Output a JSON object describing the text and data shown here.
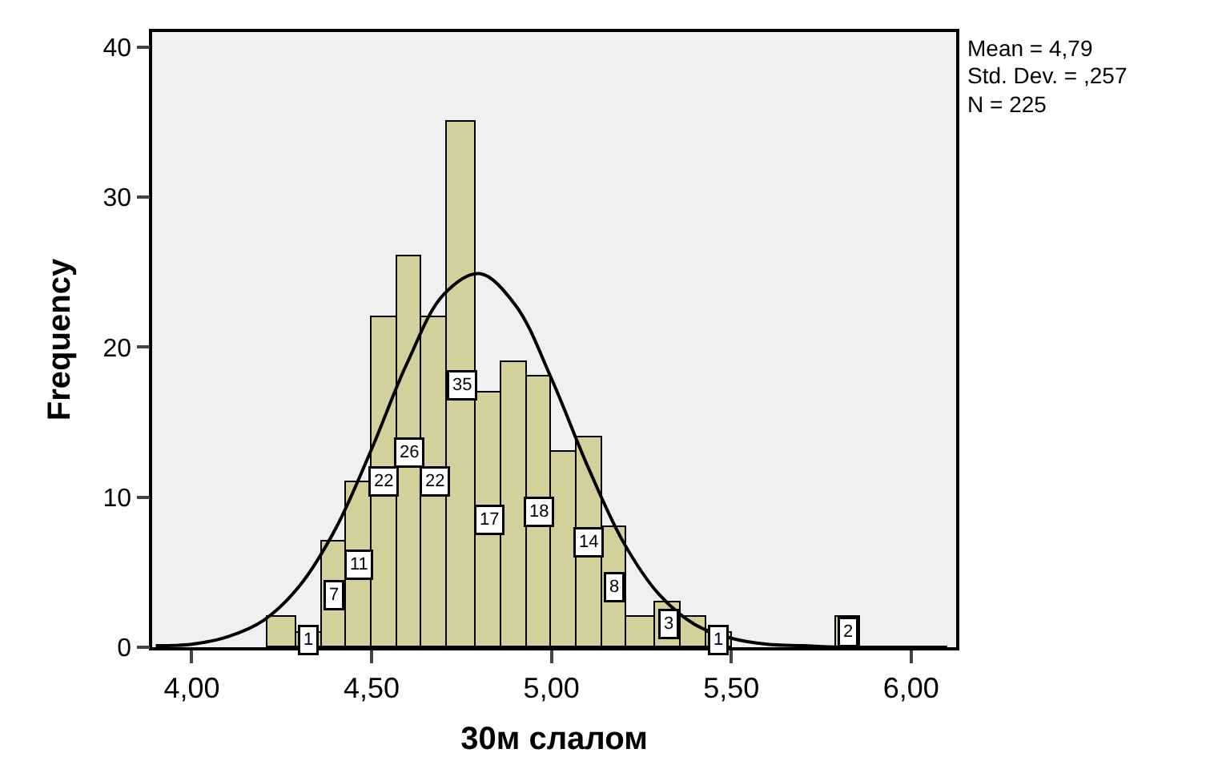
{
  "chart_data": {
    "type": "histogram",
    "xlabel": "30м слалом",
    "ylabel": "Frequency",
    "bins": [
      4.21,
      4.29,
      4.36,
      4.43,
      4.5,
      4.57,
      4.64,
      4.71,
      4.79,
      4.86,
      4.93,
      5.0,
      5.07,
      5.14,
      5.21,
      5.29,
      5.36,
      5.43,
      5.5,
      5.79,
      5.86
    ],
    "values": [
      2,
      1,
      7,
      11,
      22,
      26,
      22,
      35,
      17,
      19,
      18,
      13,
      14,
      8,
      2,
      3,
      2,
      1,
      0,
      2
    ],
    "value_labels": [
      null,
      "1",
      "7",
      "11",
      "22",
      "26",
      "22",
      "35",
      "17",
      null,
      "18",
      null,
      "14",
      "8",
      null,
      "3",
      null,
      "1",
      null,
      "2"
    ],
    "color": "#d4d09b",
    "series": [
      {
        "type": "line",
        "color": "#000000",
        "x": [
          3.9,
          4.0,
          4.1,
          4.2,
          4.3,
          4.4,
          4.5,
          4.6,
          4.7,
          4.8,
          4.9,
          5.0,
          5.1,
          5.2,
          5.3,
          5.4,
          5.5,
          5.6,
          5.7,
          5.8,
          5.9,
          6.0,
          6.1
        ],
        "values": [
          0.1,
          0.2,
          0.7,
          1.8,
          4.1,
          7.9,
          13.2,
          19.0,
          23.5,
          24.9,
          22.8,
          17.9,
          12.1,
          7.0,
          3.5,
          1.5,
          0.6,
          0.2,
          0.1,
          0,
          0,
          0,
          0
        ]
      }
    ],
    "xlim": [
      3.89,
      6.125
    ],
    "ylim": [
      0,
      41
    ],
    "xticks": [
      {
        "value": 4,
        "label": "4,00"
      },
      {
        "value": 4.5,
        "label": "4,50"
      },
      {
        "value": 5,
        "label": "5,00"
      },
      {
        "value": 5.5,
        "label": "5,50"
      },
      {
        "value": 6,
        "label": "6,00"
      }
    ],
    "yticks": [
      0,
      10,
      20,
      30,
      40
    ],
    "grid": false,
    "annotations": [
      "Mean = 4,79",
      "Std. Dev. = ,257",
      "N = 225"
    ]
  }
}
